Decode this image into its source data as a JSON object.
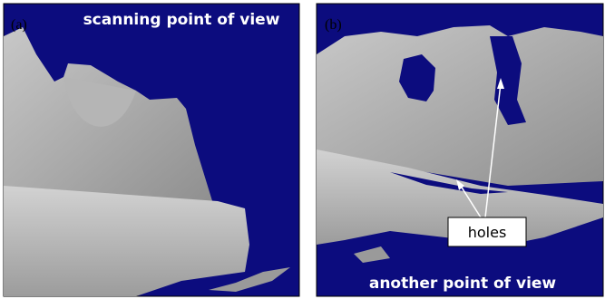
{
  "panels": [
    {
      "label": "(a)",
      "caption": "scanning point of view"
    },
    {
      "label": "(b)",
      "caption": "another point of view",
      "annotation": "holes"
    }
  ]
}
